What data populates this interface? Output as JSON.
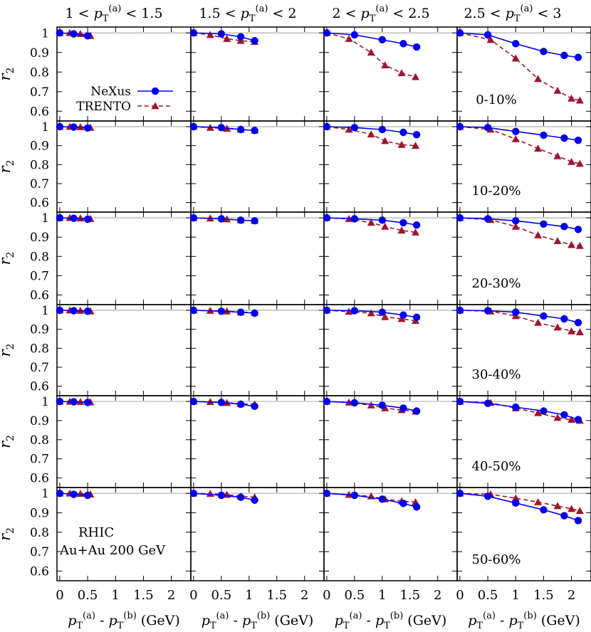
{
  "chart_data": {
    "type": "line",
    "row_titles": [
      "0-10%",
      "10-20%",
      "20-30%",
      "30-40%",
      "40-50%",
      "50-60%"
    ],
    "column_titles": [
      {
        "pre": "1 < ",
        "sup": "(a)",
        "post": " < 1.5"
      },
      {
        "pre": "1.5 < ",
        "sup": "(a)",
        "post": " < 2"
      },
      {
        "pre": "2 < ",
        "sup": "(a)",
        "post": " < 2.5"
      },
      {
        "pre": "2.5 < ",
        "sup": "(a)",
        "post": " < 3"
      }
    ],
    "ylabel": "r",
    "ylabel_sub": "2",
    "xlabel": {
      "sup_a": "(a)",
      "sup_b": "(b)",
      "tail": " (GeV)"
    },
    "ylim": [
      0.55,
      1.03
    ],
    "xlim": [
      -0.05,
      2.35
    ],
    "yticks": [
      0.6,
      0.7,
      0.8,
      0.9,
      1
    ],
    "ytick_labels": [
      "0.6",
      "0.7",
      "0.8",
      "0.9",
      "1"
    ],
    "xticks": [
      0,
      0.5,
      1,
      1.5,
      2
    ],
    "xtick_labels": [
      "0",
      "0.5",
      "1",
      "1.5",
      "2"
    ],
    "reference_line": 1,
    "legend": {
      "location": "top-left panel",
      "entries": [
        "NeXus",
        "TRENTO"
      ]
    },
    "annotation": [
      "RHIC",
      "Au+Au 200 GeV"
    ],
    "series_style": {
      "NeXus": {
        "color": "#0000ee",
        "marker": "circle",
        "line": "solid"
      },
      "TRENTO": {
        "color": "#a0142c",
        "marker": "triangle",
        "line": "dashed"
      }
    },
    "x": {
      "NeXus": [
        [
          0,
          0.25,
          0.5
        ],
        [
          0,
          0.5,
          0.85,
          1.1
        ],
        [
          0,
          0.5,
          1.0,
          1.38,
          1.62
        ],
        [
          0,
          0.5,
          1.0,
          1.5,
          1.87,
          2.12
        ]
      ],
      "TRENTO": [
        [
          0,
          0.18,
          0.37,
          0.55
        ],
        [
          0,
          0.3,
          0.6,
          0.85,
          1.1
        ],
        [
          0,
          0.4,
          0.8,
          1.05,
          1.35,
          1.6
        ],
        [
          0,
          0.55,
          1.0,
          1.4,
          1.75,
          2.0,
          2.15
        ]
      ]
    },
    "panels": [
      [
        {
          "NeXus": [
            1.0,
            0.995,
            0.985
          ],
          "TRENTO": [
            1.0,
            1.0,
            0.995,
            0.985
          ]
        },
        {
          "NeXus": [
            1.0,
            0.995,
            0.98,
            0.96
          ],
          "TRENTO": [
            1.0,
            0.99,
            0.97,
            0.96,
            0.955
          ]
        },
        {
          "NeXus": [
            1.0,
            0.99,
            0.965,
            0.945,
            0.928
          ],
          "TRENTO": [
            1.0,
            0.97,
            0.9,
            0.835,
            0.795,
            0.775
          ]
        },
        {
          "NeXus": [
            1.0,
            0.99,
            0.945,
            0.905,
            0.885,
            0.875
          ],
          "TRENTO": [
            1.0,
            0.965,
            0.87,
            0.765,
            0.705,
            0.665,
            0.655
          ]
        }
      ],
      [
        {
          "NeXus": [
            1.0,
            0.998,
            0.993
          ],
          "TRENTO": [
            1.0,
            1.0,
            0.998,
            0.995
          ]
        },
        {
          "NeXus": [
            1.0,
            0.995,
            0.985,
            0.98
          ],
          "TRENTO": [
            1.0,
            0.995,
            0.99,
            0.985,
            0.98
          ]
        },
        {
          "NeXus": [
            1.0,
            0.995,
            0.985,
            0.97,
            0.958
          ],
          "TRENTO": [
            1.0,
            0.985,
            0.96,
            0.925,
            0.905,
            0.9
          ]
        },
        {
          "NeXus": [
            1.0,
            0.995,
            0.975,
            0.955,
            0.94,
            0.928
          ],
          "TRENTO": [
            1.0,
            0.985,
            0.935,
            0.885,
            0.845,
            0.815,
            0.805
          ]
        }
      ],
      [
        {
          "NeXus": [
            1.0,
            0.998,
            0.993
          ],
          "TRENTO": [
            1.0,
            1.0,
            0.998,
            0.995
          ]
        },
        {
          "NeXus": [
            1.0,
            0.995,
            0.988,
            0.985
          ],
          "TRENTO": [
            1.0,
            0.998,
            0.993,
            0.988,
            0.985
          ]
        },
        {
          "NeXus": [
            1.0,
            0.995,
            0.988,
            0.975,
            0.963
          ],
          "TRENTO": [
            1.0,
            0.995,
            0.975,
            0.955,
            0.935,
            0.925
          ]
        },
        {
          "NeXus": [
            1.0,
            0.995,
            0.985,
            0.968,
            0.955,
            0.94
          ],
          "TRENTO": [
            1.0,
            0.99,
            0.955,
            0.91,
            0.88,
            0.86,
            0.855
          ]
        }
      ],
      [
        {
          "NeXus": [
            1.0,
            0.998,
            0.995
          ],
          "TRENTO": [
            1.0,
            1.0,
            0.998,
            0.995
          ]
        },
        {
          "NeXus": [
            1.0,
            0.995,
            0.99,
            0.985
          ],
          "TRENTO": [
            1.0,
            0.998,
            0.995,
            0.99,
            0.988
          ]
        },
        {
          "NeXus": [
            1.0,
            0.998,
            0.99,
            0.975,
            0.963
          ],
          "TRENTO": [
            1.0,
            0.993,
            0.985,
            0.965,
            0.955,
            0.945
          ]
        },
        {
          "NeXus": [
            1.0,
            0.998,
            0.99,
            0.97,
            0.955,
            0.935
          ],
          "TRENTO": [
            1.0,
            0.995,
            0.97,
            0.935,
            0.91,
            0.89,
            0.885
          ]
        }
      ],
      [
        {
          "NeXus": [
            1.0,
            0.998,
            0.995
          ],
          "TRENTO": [
            1.0,
            1.0,
            0.998,
            0.996
          ]
        },
        {
          "NeXus": [
            1.0,
            0.995,
            0.985,
            0.975
          ],
          "TRENTO": [
            1.0,
            0.998,
            0.993,
            0.988,
            0.985
          ]
        },
        {
          "NeXus": [
            1.0,
            0.993,
            0.98,
            0.965,
            0.95
          ],
          "TRENTO": [
            1.0,
            0.995,
            0.98,
            0.965,
            0.955,
            0.948
          ]
        },
        {
          "NeXus": [
            1.0,
            0.99,
            0.97,
            0.95,
            0.93,
            0.905
          ],
          "TRENTO": [
            1.0,
            0.993,
            0.965,
            0.94,
            0.915,
            0.905,
            0.9
          ]
        }
      ],
      [
        {
          "NeXus": [
            1.0,
            0.995,
            0.99
          ],
          "TRENTO": [
            1.0,
            1.0,
            0.998,
            0.995
          ]
        },
        {
          "NeXus": [
            1.0,
            0.99,
            0.98,
            0.965
          ],
          "TRENTO": [
            1.0,
            0.998,
            0.993,
            0.985,
            0.98
          ]
        },
        {
          "NeXus": [
            1.0,
            0.99,
            0.97,
            0.948,
            0.93
          ],
          "TRENTO": [
            1.0,
            0.993,
            0.985,
            0.97,
            0.96,
            0.955
          ]
        },
        {
          "NeXus": [
            1.0,
            0.985,
            0.95,
            0.915,
            0.885,
            0.86
          ],
          "TRENTO": [
            1.0,
            0.995,
            0.975,
            0.955,
            0.935,
            0.92,
            0.91
          ]
        }
      ]
    ]
  }
}
